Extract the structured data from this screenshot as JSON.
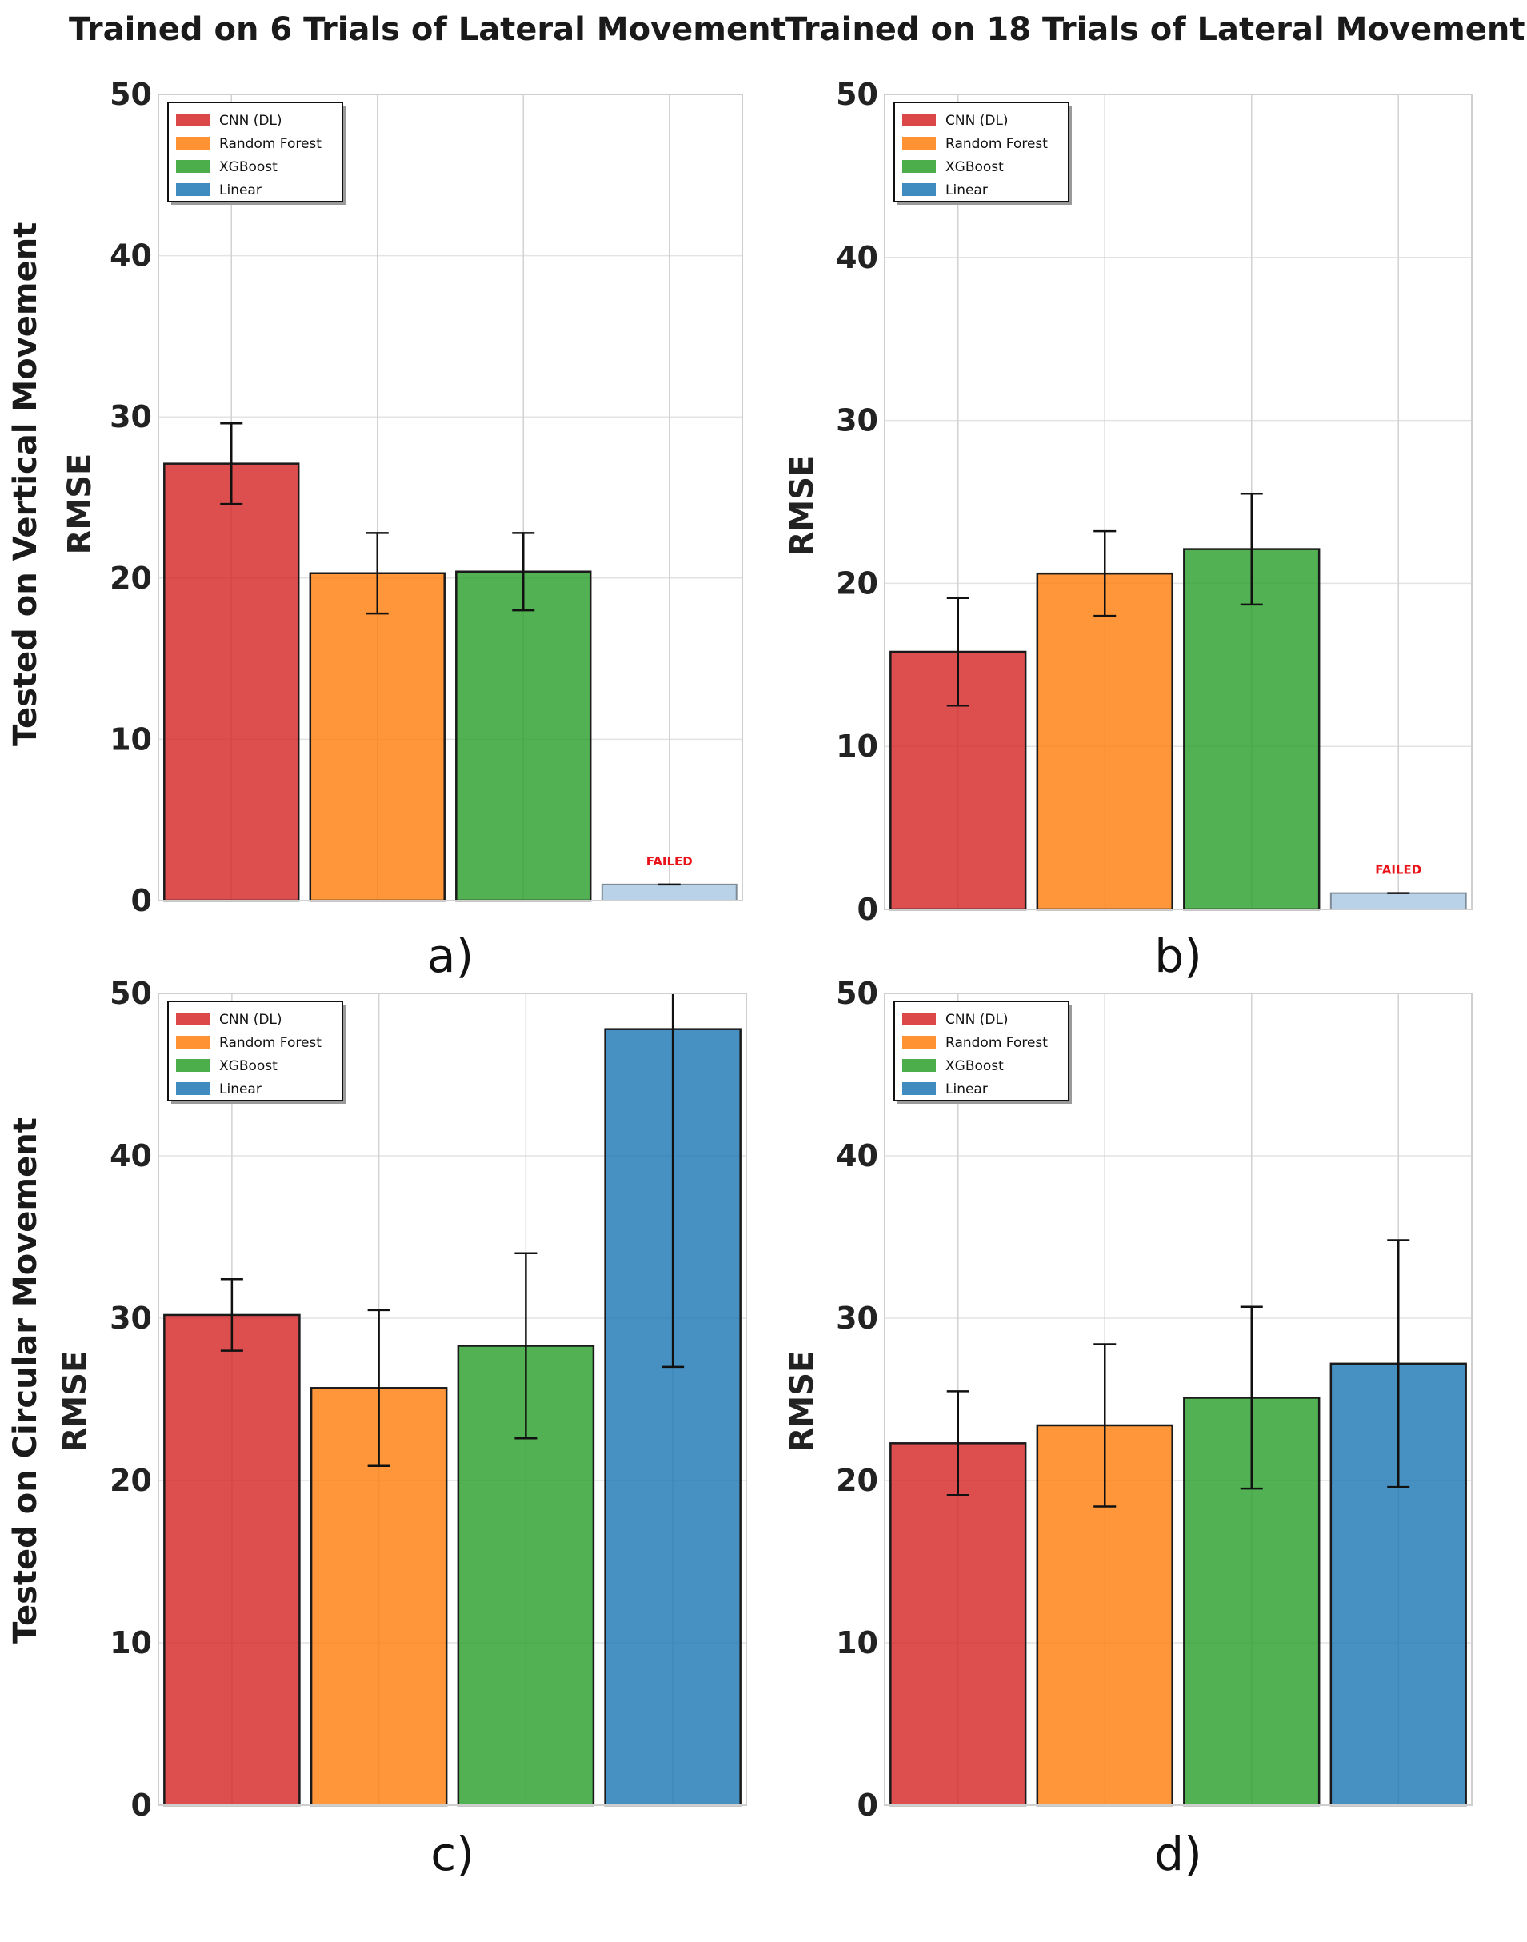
{
  "column_titles": [
    "Trained on 6 Trials of Lateral Movement",
    "Trained on 18 Trials of Lateral Movement"
  ],
  "row_titles": [
    "Tested on Vertical Movement",
    "Tested on Circular Movement"
  ],
  "colors": {
    "CNN (DL)": "#d62728",
    "Random Forest": "#ff7f0e",
    "XGBoost": "#2ca02c",
    "Linear": "#1f77b4",
    "failed_fill": "#b9d2e8",
    "failed_text": "#e8141a",
    "grid": "#e3e3e3"
  },
  "chart_data": [
    {
      "panel": "a)",
      "type": "bar",
      "ylabel": "RMSE",
      "ylim": [
        0,
        50
      ],
      "yticks": [
        0,
        10,
        20,
        30,
        40,
        50
      ],
      "legend": [
        "CNN (DL)",
        "Random Forest",
        "XGBoost",
        "Linear"
      ],
      "legend_position": "top-left",
      "categories": [
        "CNN (DL)",
        "Random Forest",
        "XGBoost",
        "Linear"
      ],
      "values": [
        27.1,
        20.3,
        20.4,
        1.0
      ],
      "errors": [
        2.5,
        2.5,
        2.4,
        0.0
      ],
      "failed": [
        false,
        false,
        false,
        true
      ],
      "failed_label": "FAILED"
    },
    {
      "panel": "b)",
      "type": "bar",
      "ylabel": "RMSE",
      "ylim": [
        0,
        50
      ],
      "yticks": [
        0,
        10,
        20,
        30,
        40,
        50
      ],
      "legend": [
        "CNN (DL)",
        "Random Forest",
        "XGBoost",
        "Linear"
      ],
      "legend_position": "top-left",
      "categories": [
        "CNN (DL)",
        "Random Forest",
        "XGBoost",
        "Linear"
      ],
      "values": [
        15.8,
        20.6,
        22.1,
        1.0
      ],
      "errors": [
        3.3,
        2.6,
        3.4,
        0.0
      ],
      "failed": [
        false,
        false,
        false,
        true
      ],
      "failed_label": "FAILED"
    },
    {
      "panel": "c)",
      "type": "bar",
      "ylabel": "RMSE",
      "ylim": [
        0,
        50
      ],
      "yticks": [
        0,
        10,
        20,
        30,
        40,
        50
      ],
      "legend": [
        "CNN (DL)",
        "Random Forest",
        "XGBoost",
        "Linear"
      ],
      "legend_position": "top-left",
      "categories": [
        "CNN (DL)",
        "Random Forest",
        "XGBoost",
        "Linear"
      ],
      "values": [
        30.2,
        25.7,
        28.3,
        47.8
      ],
      "errors": [
        2.2,
        4.8,
        5.7,
        20.8
      ],
      "failed": [
        false,
        false,
        false,
        false
      ],
      "failed_label": ""
    },
    {
      "panel": "d)",
      "type": "bar",
      "ylabel": "RMSE",
      "ylim": [
        0,
        50
      ],
      "yticks": [
        0,
        10,
        20,
        30,
        40,
        50
      ],
      "legend": [
        "CNN (DL)",
        "Random Forest",
        "XGBoost",
        "Linear"
      ],
      "legend_position": "top-left",
      "categories": [
        "CNN (DL)",
        "Random Forest",
        "XGBoost",
        "Linear"
      ],
      "values": [
        22.3,
        23.4,
        25.1,
        27.2
      ],
      "errors": [
        3.2,
        5.0,
        5.6,
        7.6
      ],
      "failed": [
        false,
        false,
        false,
        false
      ],
      "failed_label": ""
    }
  ]
}
